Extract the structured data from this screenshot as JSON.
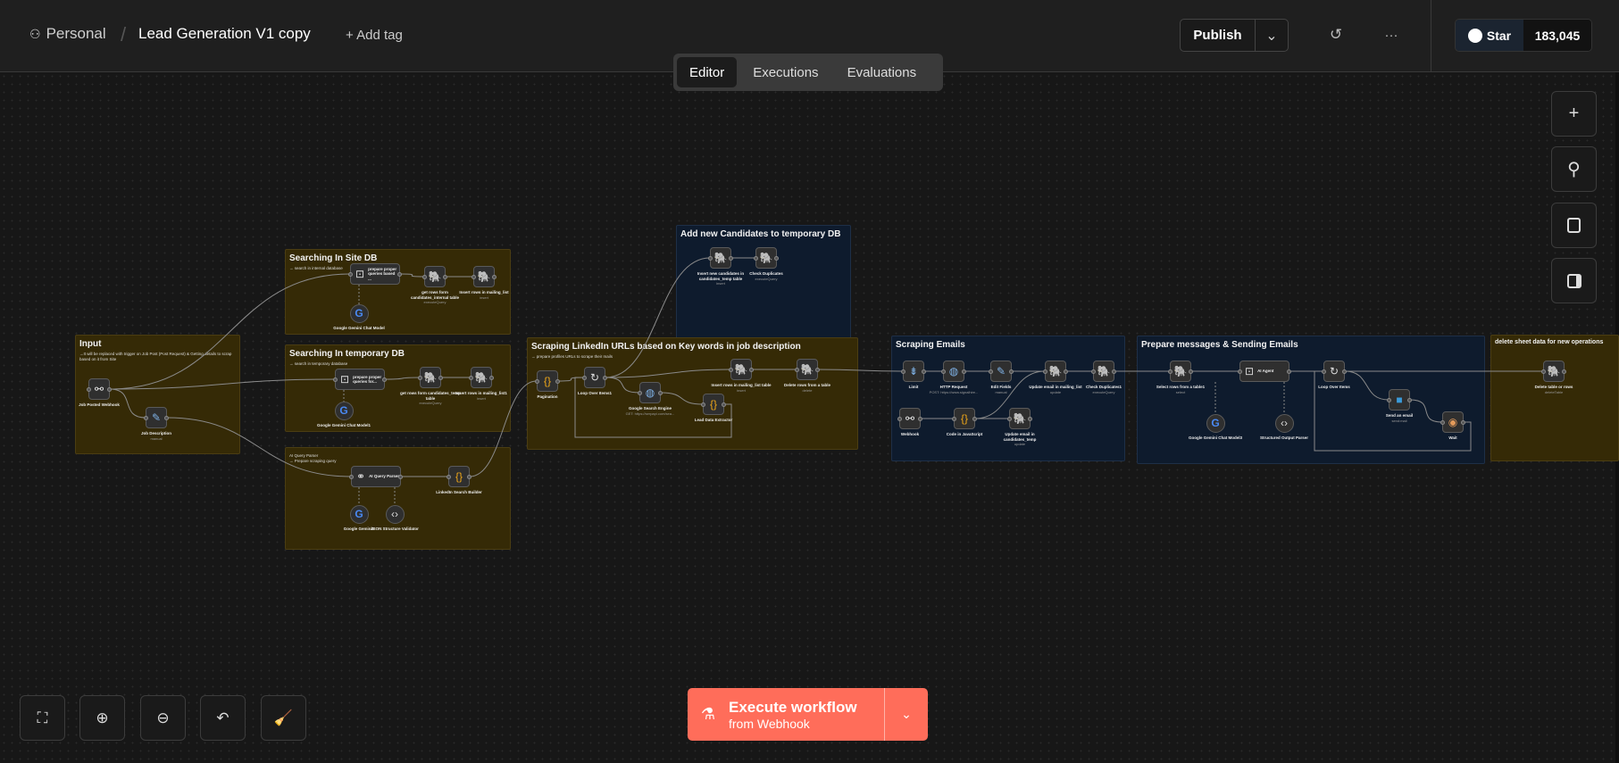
{
  "header": {
    "project": "Personal",
    "workflow_title": "Lead Generation V1 copy",
    "add_tag": "+ Add tag",
    "publish": "Publish",
    "star": "Star",
    "star_count": "183,045"
  },
  "tabs": [
    {
      "label": "Editor",
      "active": true
    },
    {
      "label": "Executions"
    },
    {
      "label": "Evaluations"
    }
  ],
  "groups": [
    {
      "id": "input",
      "title": "Input",
      "note": "→It will be replaced with trigger on Job Post (Post Request) & Getting details to scrap based on it from Site",
      "color": "yellow"
    },
    {
      "id": "site",
      "title": "Searching In Site DB",
      "note": "→ search in internal database",
      "color": "yellow"
    },
    {
      "id": "temp",
      "title": "Searching In temporary DB",
      "note": "→ search in temporary database",
      "color": "yellow"
    },
    {
      "id": "parser",
      "title": "",
      "note": "AI Query Parser\n→ Prepare scraping query",
      "color": "yellow"
    },
    {
      "id": "addnew",
      "title": "Add new Candidates to temporary DB",
      "note": "",
      "color": "blue"
    },
    {
      "id": "linkedin",
      "title": "Scraping LinkedIn URLs based on Key words in job description",
      "note": "→ prepare profiles URLs to scrape their mails",
      "color": "yellow"
    },
    {
      "id": "emails",
      "title": "Scraping Emails",
      "note": "",
      "color": "blue"
    },
    {
      "id": "prepare",
      "title": "Prepare messages & Sending Emails",
      "note": "",
      "color": "blue"
    },
    {
      "id": "delete",
      "title": "delete sheet data for new operations",
      "note": "",
      "color": "yellow"
    }
  ],
  "nodes": [
    {
      "id": "webhook",
      "label": "Job Posted Webhook",
      "sub": "",
      "icon": "webhook-icon"
    },
    {
      "id": "jobdesc",
      "label": "Job Description",
      "sub": "manual",
      "icon": "pencil-icon"
    },
    {
      "id": "prepsite",
      "label": "prepare proper queries based ...",
      "sub": "",
      "icon": "robot-icon"
    },
    {
      "id": "getsite",
      "label": "get rows form candidates_internal table",
      "sub": "executeQuery",
      "icon": "postgres-icon"
    },
    {
      "id": "inssite",
      "label": "Insert rows in mailing_list",
      "sub": "insert",
      "icon": "postgres-icon"
    },
    {
      "id": "gemsite",
      "label": "Google Gemini Chat Model",
      "sub": "",
      "icon": "google-icon"
    },
    {
      "id": "preptemp",
      "label": "prepare proper queries for...",
      "sub": "",
      "icon": "robot-icon"
    },
    {
      "id": "gettemp",
      "label": "get rows form candidates_temp table",
      "sub": "executeQuery",
      "icon": "postgres-icon"
    },
    {
      "id": "instemp",
      "label": "Insert rows in mailing_list1",
      "sub": "insert",
      "icon": "postgres-icon"
    },
    {
      "id": "gemtemp",
      "label": "Google Gemini Chat Model1",
      "sub": "",
      "icon": "google-icon"
    },
    {
      "id": "aiparser",
      "label": "AI Query Parser",
      "sub": "",
      "icon": "link-icon"
    },
    {
      "id": "builder",
      "label": "LinkedIn Search Builder",
      "sub": "",
      "icon": "code-braces-icon"
    },
    {
      "id": "gem1",
      "label": "Google Gemini1",
      "sub": "",
      "icon": "google-icon"
    },
    {
      "id": "jsonval",
      "label": "JSON Structure Validator",
      "sub": "",
      "icon": "json-icon"
    },
    {
      "id": "insnew",
      "label": "Insert new candidates in candidates_temp table",
      "sub": "insert",
      "icon": "postgres-icon"
    },
    {
      "id": "checkdup",
      "label": "Check Duplicates",
      "sub": "executeQuery",
      "icon": "postgres-icon"
    },
    {
      "id": "pagination",
      "label": "Pagination",
      "sub": "",
      "icon": "code-braces-icon"
    },
    {
      "id": "loop1",
      "label": "Loop Over Items1",
      "sub": "",
      "icon": "loop-icon"
    },
    {
      "id": "gsearch",
      "label": "Google Search Engine",
      "sub": "GET: https://serpapi.com/sea...",
      "icon": "globe-icon"
    },
    {
      "id": "extractor",
      "label": "Lead Data Extractor",
      "sub": "",
      "icon": "code-braces-icon"
    },
    {
      "id": "insml",
      "label": "Insert rows in mailing_list table",
      "sub": "insert",
      "icon": "postgres-icon"
    },
    {
      "id": "delrows",
      "label": "Delete rows from a table",
      "sub": "delete",
      "icon": "postgres-icon"
    },
    {
      "id": "limit",
      "label": "Limit",
      "sub": "",
      "icon": "limit-icon"
    },
    {
      "id": "http",
      "label": "HTTP Request",
      "sub": "POST: https://www.signalhire...",
      "icon": "globe-icon"
    },
    {
      "id": "edit",
      "label": "Edit Fields",
      "sub": "manual",
      "icon": "pencil-icon"
    },
    {
      "id": "updml",
      "label": "Update email in mailing_list",
      "sub": "update",
      "icon": "postgres-icon"
    },
    {
      "id": "checkdup1",
      "label": "Check Duplicates1",
      "sub": "executeQuery",
      "icon": "postgres-icon"
    },
    {
      "id": "webhook2",
      "label": "Webhook",
      "sub": "",
      "icon": "webhook-icon"
    },
    {
      "id": "code",
      "label": "Code in JavaScript",
      "sub": "",
      "icon": "code-braces-icon"
    },
    {
      "id": "updtemp",
      "label": "Update email in candidates_temp",
      "sub": "update",
      "icon": "postgres-icon"
    },
    {
      "id": "select",
      "label": "Select rows from a table1",
      "sub": "select",
      "icon": "postgres-icon"
    },
    {
      "id": "agent",
      "label": "AI Agent",
      "sub": "",
      "icon": "robot-icon"
    },
    {
      "id": "loop2",
      "label": "Loop Over Items",
      "sub": "",
      "icon": "loop-icon"
    },
    {
      "id": "gem3",
      "label": "Google Gemini Chat Model3",
      "sub": "",
      "icon": "google-icon"
    },
    {
      "id": "parser2",
      "label": "Structured Output Parser",
      "sub": "",
      "icon": "json-icon"
    },
    {
      "id": "send",
      "label": "Send an email",
      "sub": "send:mail",
      "icon": "email-icon"
    },
    {
      "id": "wait",
      "label": "Wait",
      "sub": "",
      "icon": "wait-icon"
    },
    {
      "id": "deltable",
      "label": "Delete table or rows",
      "sub": "deleteTable",
      "icon": "postgres-icon"
    }
  ],
  "execute": {
    "title": "Execute workflow",
    "subtitle": "from Webhook"
  },
  "colors": {
    "accent": "#ff6d5a",
    "sticky_yellow": "#352a06",
    "sticky_blue": "#0e1b2d",
    "postgres": "#6ea4d6",
    "code": "#f0a818"
  }
}
